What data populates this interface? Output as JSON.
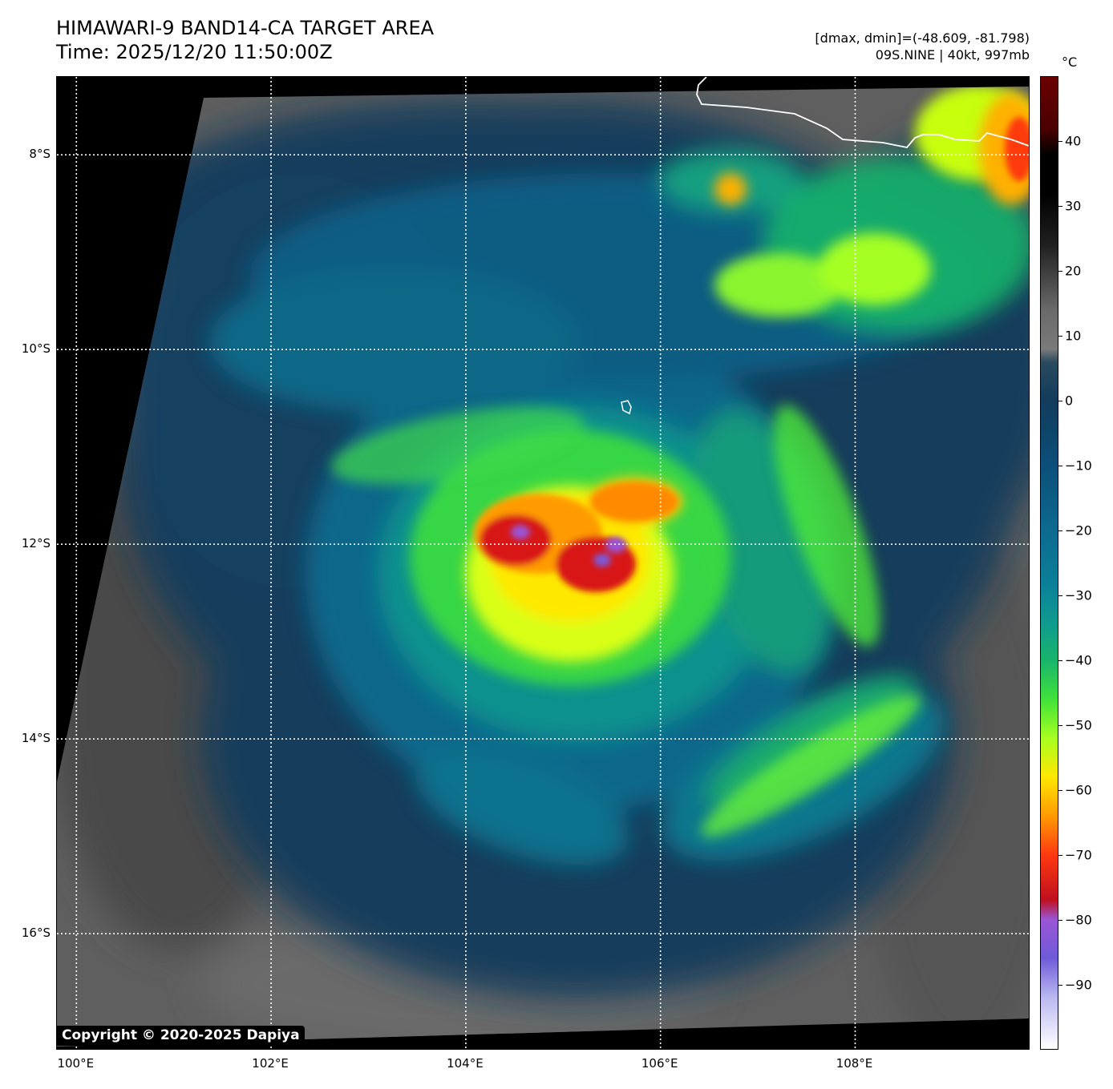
{
  "title": {
    "line1": "HIMAWARI-9 BAND14-CA TARGET AREA",
    "line2": "Time: 2025/12/20 11:50:00Z"
  },
  "info": {
    "line1": "[dmax, dmin]=(-48.609, -81.798)",
    "line2": "09S.NINE | 40kt, 997mb"
  },
  "colorbar": {
    "unit": "°C",
    "range": [
      -100,
      50
    ],
    "ticks": [
      "40",
      "30",
      "20",
      "10",
      "0",
      "−10",
      "−20",
      "−30",
      "−40",
      "−50",
      "−60",
      "−70",
      "−80",
      "−90"
    ],
    "tick_values": [
      40,
      30,
      20,
      10,
      0,
      -10,
      -20,
      -30,
      -40,
      -50,
      -60,
      -70,
      -80,
      -90
    ],
    "stops": [
      {
        "t": -100,
        "color": "#ffffff"
      },
      {
        "t": -92,
        "color": "#b9b7f0"
      },
      {
        "t": -86,
        "color": "#6f5bd8"
      },
      {
        "t": -80,
        "color": "#9a55d6"
      },
      {
        "t": -77,
        "color": "#c0101e"
      },
      {
        "t": -70,
        "color": "#ff3a10"
      },
      {
        "t": -64,
        "color": "#ff9b00"
      },
      {
        "t": -58,
        "color": "#ffe800"
      },
      {
        "t": -52,
        "color": "#a6ff20"
      },
      {
        "t": -46,
        "color": "#3fe23a"
      },
      {
        "t": -40,
        "color": "#19b46c"
      },
      {
        "t": -34,
        "color": "#0e9a90"
      },
      {
        "t": -28,
        "color": "#0b7f99"
      },
      {
        "t": -20,
        "color": "#0d6a90"
      },
      {
        "t": -10,
        "color": "#0b4f7a"
      },
      {
        "t": 0,
        "color": "#123c5c"
      },
      {
        "t": 6,
        "color": "#2a4a5e"
      },
      {
        "t": 8,
        "color": "#7a7a7a"
      },
      {
        "t": 14,
        "color": "#6a6a6a"
      },
      {
        "t": 24,
        "color": "#202020"
      },
      {
        "t": 32,
        "color": "#000000"
      },
      {
        "t": 38,
        "color": "#000000"
      },
      {
        "t": 42,
        "color": "#4a0000"
      },
      {
        "t": 50,
        "color": "#6b0000"
      }
    ]
  },
  "map": {
    "lon_range": [
      99.8,
      109.8
    ],
    "lat_range": [
      -17.2,
      -7.2
    ],
    "lon_ticks": [
      100,
      102,
      104,
      106,
      108
    ],
    "lat_ticks": [
      -8,
      -10,
      -12,
      -14,
      -16
    ],
    "lon_labels": [
      "100°E",
      "102°E",
      "104°E",
      "106°E",
      "108°E"
    ],
    "lat_labels": [
      "8°S",
      "10°S",
      "12°S",
      "14°S",
      "16°S"
    ],
    "copyright": "Copyright © 2020-2025 Dapiya"
  }
}
